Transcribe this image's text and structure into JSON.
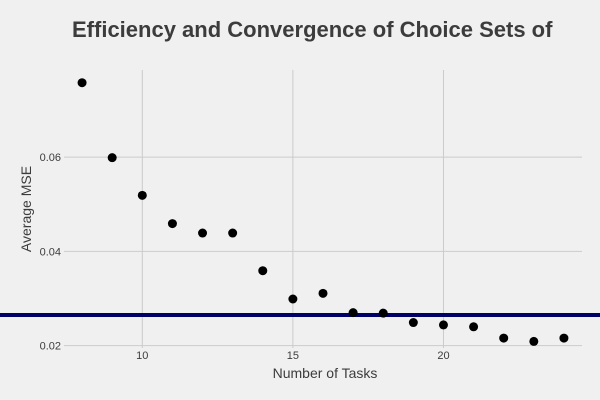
{
  "chart_data": {
    "type": "scatter",
    "title": "Efficiency and Convergence of Choice Sets of",
    "xlabel": "Number of Tasks",
    "ylabel": "Average MSE",
    "xlim": [
      7.4,
      24.6
    ],
    "ylim": [
      0.0195,
      0.0785
    ],
    "xticks": [
      10,
      15,
      20
    ],
    "yticks": [
      0.02,
      0.04,
      0.06
    ],
    "x_tick_labels": [
      "10",
      "15",
      "20"
    ],
    "y_tick_labels": [
      "0.02",
      "0.04",
      "0.06"
    ],
    "grid": true,
    "x": [
      8,
      9,
      10,
      11,
      12,
      13,
      14,
      15,
      16,
      17,
      18,
      19,
      20,
      21,
      22,
      23,
      24
    ],
    "y": [
      0.0758,
      0.0599,
      0.0519,
      0.0459,
      0.0439,
      0.0439,
      0.0359,
      0.0299,
      0.0311,
      0.027,
      0.0269,
      0.0249,
      0.0244,
      0.024,
      0.0216,
      0.0209,
      0.0216
    ],
    "hline": {
      "y": 0.0265,
      "color": "#000066"
    },
    "point_color": "#000000",
    "background_color": "#f0f0f0",
    "grid_color": "#cbcbcb",
    "text_color": "#3c3c3c"
  }
}
